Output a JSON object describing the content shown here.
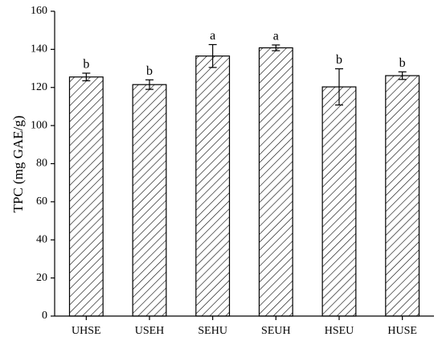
{
  "chart_data": {
    "type": "bar",
    "ylabel": "TPC (mg GAE/g)",
    "categories": [
      "UHSE",
      "USEH",
      "SEHU",
      "SEUH",
      "HSEU",
      "HUSE"
    ],
    "values": [
      125.5,
      121.5,
      136.5,
      140.8,
      120.3,
      126.2
    ],
    "errors": [
      2,
      2.5,
      6,
      1.5,
      9.5,
      2
    ],
    "letters": [
      "b",
      "b",
      "a",
      "a",
      "b",
      "b"
    ],
    "color": "#000000",
    "ylim": [
      0,
      160
    ],
    "yticks": [
      0,
      20,
      40,
      60,
      80,
      100,
      120,
      140,
      160
    ],
    "grid": false
  }
}
